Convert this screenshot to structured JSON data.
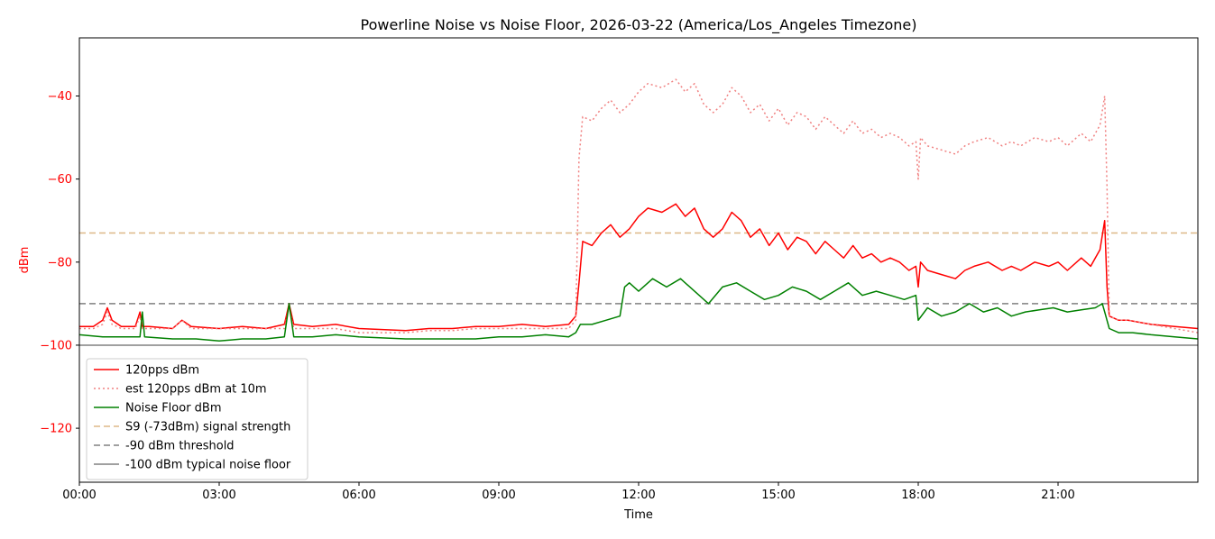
{
  "chart_data": {
    "type": "line",
    "title": "Powerline Noise vs Noise Floor, 2026-03-22 (America/Los_Angeles Timezone)",
    "xlabel": "Time",
    "ylabel": "dBm",
    "xlim": [
      0,
      24
    ],
    "ylim": [
      -133,
      -26
    ],
    "x_ticks": [
      {
        "value": 0,
        "label": "00:00"
      },
      {
        "value": 3,
        "label": "03:00"
      },
      {
        "value": 6,
        "label": "06:00"
      },
      {
        "value": 9,
        "label": "09:00"
      },
      {
        "value": 12,
        "label": "12:00"
      },
      {
        "value": 15,
        "label": "15:00"
      },
      {
        "value": 18,
        "label": "18:00"
      },
      {
        "value": 21,
        "label": "21:00"
      }
    ],
    "y_ticks": [
      {
        "value": -40,
        "label": "−40"
      },
      {
        "value": -60,
        "label": "−60"
      },
      {
        "value": -80,
        "label": "−80"
      },
      {
        "value": -100,
        "label": "−100"
      },
      {
        "value": -120,
        "label": "−120"
      }
    ],
    "grid": false,
    "legend_position": "lower-left",
    "colors": {
      "pps": "#ff0000",
      "est": "#f08080",
      "floor": "#008000",
      "s9": "#deb887",
      "thr90": "#808080",
      "floor100": "#808080",
      "ylabel": "#ff0000"
    },
    "series": [
      {
        "name": "120pps dBm",
        "style": "solid",
        "color": "#ff0000",
        "x": [
          0,
          0.3,
          0.5,
          0.6,
          0.7,
          0.9,
          1.2,
          1.3,
          1.35,
          1.5,
          2.0,
          2.2,
          2.4,
          3.0,
          3.5,
          4.0,
          4.4,
          4.5,
          4.6,
          5.0,
          5.5,
          6.0,
          7.0,
          7.5,
          8.0,
          8.5,
          9.0,
          9.5,
          10.0,
          10.5,
          10.65,
          10.72,
          10.8,
          11.0,
          11.2,
          11.4,
          11.6,
          11.8,
          12.0,
          12.2,
          12.5,
          12.8,
          13.0,
          13.2,
          13.4,
          13.6,
          13.8,
          14.0,
          14.2,
          14.4,
          14.6,
          14.8,
          15.0,
          15.2,
          15.4,
          15.6,
          15.8,
          16.0,
          16.2,
          16.4,
          16.6,
          16.8,
          17.0,
          17.2,
          17.4,
          17.6,
          17.8,
          17.95,
          18.0,
          18.05,
          18.2,
          18.5,
          18.8,
          19.0,
          19.2,
          19.5,
          19.8,
          20.0,
          20.2,
          20.5,
          20.8,
          21.0,
          21.2,
          21.5,
          21.7,
          21.8,
          21.9,
          22.0,
          22.05,
          22.1,
          22.3,
          22.5,
          23.0,
          23.5,
          24.0
        ],
        "y": [
          -95.5,
          -95.5,
          -94,
          -91,
          -94,
          -95.5,
          -95.5,
          -92,
          -95.5,
          -95.5,
          -96,
          -94,
          -95.5,
          -96,
          -95.5,
          -96,
          -95,
          -90,
          -95,
          -95.5,
          -95,
          -96,
          -96.5,
          -96,
          -96,
          -95.5,
          -95.5,
          -95,
          -95.5,
          -95,
          -93,
          -85,
          -75,
          -76,
          -73,
          -71,
          -74,
          -72,
          -69,
          -67,
          -68,
          -66,
          -69,
          -67,
          -72,
          -74,
          -72,
          -68,
          -70,
          -74,
          -72,
          -76,
          -73,
          -77,
          -74,
          -75,
          -78,
          -75,
          -77,
          -79,
          -76,
          -79,
          -78,
          -80,
          -79,
          -80,
          -82,
          -81,
          -86,
          -80,
          -82,
          -83,
          -84,
          -82,
          -81,
          -80,
          -82,
          -81,
          -82,
          -80,
          -81,
          -80,
          -82,
          -79,
          -81,
          -79,
          -77,
          -70,
          -86,
          -93,
          -94,
          -94,
          -95,
          -95.5,
          -96
        ]
      },
      {
        "name": "est 120pps dBm at 10m",
        "style": "dotted",
        "color": "#f08080",
        "x": [
          0,
          0.3,
          0.5,
          0.6,
          0.7,
          0.9,
          1.2,
          1.3,
          1.35,
          1.5,
          2.0,
          2.2,
          2.4,
          3.0,
          3.5,
          4.0,
          4.4,
          4.5,
          4.6,
          5.0,
          5.5,
          6.0,
          7.0,
          7.5,
          8.0,
          8.5,
          9.0,
          9.5,
          10.0,
          10.5,
          10.65,
          10.72,
          10.8,
          11.0,
          11.2,
          11.4,
          11.6,
          11.8,
          12.0,
          12.2,
          12.5,
          12.8,
          13.0,
          13.2,
          13.4,
          13.6,
          13.8,
          14.0,
          14.2,
          14.4,
          14.6,
          14.8,
          15.0,
          15.2,
          15.4,
          15.6,
          15.8,
          16.0,
          16.2,
          16.4,
          16.6,
          16.8,
          17.0,
          17.2,
          17.4,
          17.6,
          17.8,
          17.95,
          18.0,
          18.05,
          18.2,
          18.5,
          18.8,
          19.0,
          19.2,
          19.5,
          19.8,
          20.0,
          20.2,
          20.5,
          20.8,
          21.0,
          21.2,
          21.5,
          21.7,
          21.8,
          21.9,
          22.0,
          22.05,
          22.1,
          22.3,
          22.5,
          23.0,
          23.5,
          24.0
        ],
        "y": [
          -96,
          -96,
          -95,
          -92,
          -95,
          -96,
          -96,
          -93,
          -96,
          -96,
          -96,
          -94,
          -96,
          -96,
          -96,
          -96,
          -96,
          -91,
          -96,
          -96,
          -96,
          -97,
          -97,
          -96.5,
          -96.5,
          -96,
          -96,
          -96,
          -96,
          -96,
          -94,
          -55,
          -45,
          -46,
          -43,
          -41,
          -44,
          -42,
          -39,
          -37,
          -38,
          -36,
          -39,
          -37,
          -42,
          -44,
          -42,
          -38,
          -40,
          -44,
          -42,
          -46,
          -43,
          -47,
          -44,
          -45,
          -48,
          -45,
          -47,
          -49,
          -46,
          -49,
          -48,
          -50,
          -49,
          -50,
          -52,
          -51,
          -60,
          -50,
          -52,
          -53,
          -54,
          -52,
          -51,
          -50,
          -52,
          -51,
          -52,
          -50,
          -51,
          -50,
          -52,
          -49,
          -51,
          -49,
          -47,
          -40,
          -62,
          -93,
          -94,
          -94,
          -95,
          -96,
          -97
        ]
      },
      {
        "name": "Noise Floor dBm",
        "style": "solid",
        "color": "#008000",
        "x": [
          0,
          0.5,
          1.0,
          1.3,
          1.35,
          1.4,
          2.0,
          2.5,
          3.0,
          3.5,
          4.0,
          4.4,
          4.5,
          4.6,
          5.0,
          5.5,
          6.0,
          7.0,
          7.5,
          8.0,
          8.5,
          9.0,
          9.5,
          10.0,
          10.5,
          10.65,
          10.75,
          11.0,
          11.3,
          11.6,
          11.7,
          11.8,
          12.0,
          12.3,
          12.6,
          12.9,
          13.2,
          13.5,
          13.8,
          14.1,
          14.4,
          14.7,
          15.0,
          15.3,
          15.6,
          15.9,
          16.2,
          16.5,
          16.8,
          17.1,
          17.4,
          17.7,
          17.95,
          18.0,
          18.2,
          18.5,
          18.8,
          19.1,
          19.4,
          19.7,
          20.0,
          20.3,
          20.6,
          20.9,
          21.2,
          21.5,
          21.8,
          21.95,
          22.0,
          22.1,
          22.3,
          22.6,
          23.0,
          23.5,
          24.0
        ],
        "y": [
          -97.5,
          -98,
          -98,
          -98,
          -92,
          -98,
          -98.5,
          -98.5,
          -99,
          -98.5,
          -98.5,
          -98,
          -90,
          -98,
          -98,
          -97.5,
          -98,
          -98.5,
          -98.5,
          -98.5,
          -98.5,
          -98,
          -98,
          -97.5,
          -98,
          -97,
          -95,
          -95,
          -94,
          -93,
          -86,
          -85,
          -87,
          -84,
          -86,
          -84,
          -87,
          -90,
          -86,
          -85,
          -87,
          -89,
          -88,
          -86,
          -87,
          -89,
          -87,
          -85,
          -88,
          -87,
          -88,
          -89,
          -88,
          -94,
          -91,
          -93,
          -92,
          -90,
          -92,
          -91,
          -93,
          -92,
          -91.5,
          -91,
          -92,
          -91.5,
          -91,
          -90,
          -92,
          -96,
          -97,
          -97,
          -97.5,
          -98,
          -98.5
        ]
      }
    ],
    "reference_lines": [
      {
        "name": "S9 (-73dBm) signal strength",
        "y": -73,
        "style": "dashed",
        "color": "#deb887"
      },
      {
        "name": "-90 dBm threshold",
        "y": -90,
        "style": "dashed",
        "color": "#808080"
      },
      {
        "name": "-100 dBm typical noise floor",
        "y": -100,
        "style": "solid",
        "color": "#808080"
      }
    ]
  }
}
